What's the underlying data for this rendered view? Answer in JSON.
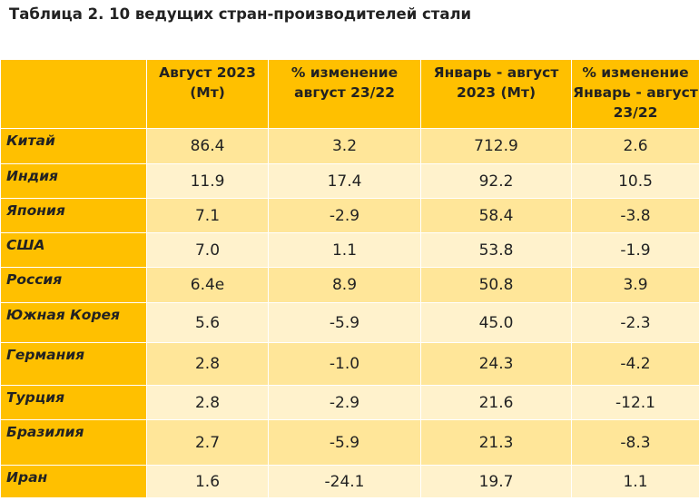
{
  "title": "Таблица 2. 10 ведущих стран-производителей стали",
  "colors": {
    "header_bg": "#ffc000",
    "row_dark": "#ffe699",
    "row_light": "#fff2cc"
  },
  "headers": [
    "",
    "Август 2023 (Мт)",
    "% изменение август 23/22",
    "Январь - август 2023 (Мт)",
    "% изменение Январь - август 23/22"
  ],
  "rows": [
    {
      "country": "Китай",
      "aug_2023": "86.4",
      "aug_change": "3.2",
      "jan_aug_2023": "712.9",
      "jan_aug_change": "2.6"
    },
    {
      "country": "Индия",
      "aug_2023": "11.9",
      "aug_change": "17.4",
      "jan_aug_2023": "92.2",
      "jan_aug_change": "10.5"
    },
    {
      "country": "Япония",
      "aug_2023": "7.1",
      "aug_change": "-2.9",
      "jan_aug_2023": "58.4",
      "jan_aug_change": "-3.8"
    },
    {
      "country": "США",
      "aug_2023": "7.0",
      "aug_change": "1.1",
      "jan_aug_2023": "53.8",
      "jan_aug_change": "-1.9"
    },
    {
      "country": "Россия",
      "aug_2023": "6.4e",
      "aug_change": "8.9",
      "jan_aug_2023": "50.8",
      "jan_aug_change": "3.9"
    },
    {
      "country": "Южная Корея",
      "aug_2023": "5.6",
      "aug_change": "-5.9",
      "jan_aug_2023": "45.0",
      "jan_aug_change": "-2.3"
    },
    {
      "country": "Германия",
      "aug_2023": "2.8",
      "aug_change": "-1.0",
      "jan_aug_2023": "24.3",
      "jan_aug_change": "-4.2"
    },
    {
      "country": "Турция",
      "aug_2023": "2.8",
      "aug_change": "-2.9",
      "jan_aug_2023": "21.6",
      "jan_aug_change": "-12.1"
    },
    {
      "country": "Бразилия",
      "aug_2023": "2.7",
      "aug_change": "-5.9",
      "jan_aug_2023": "21.3",
      "jan_aug_change": "-8.3"
    },
    {
      "country": "Иран",
      "aug_2023": "1.6",
      "aug_change": "-24.1",
      "jan_aug_2023": "19.7",
      "jan_aug_change": "1.1"
    }
  ]
}
